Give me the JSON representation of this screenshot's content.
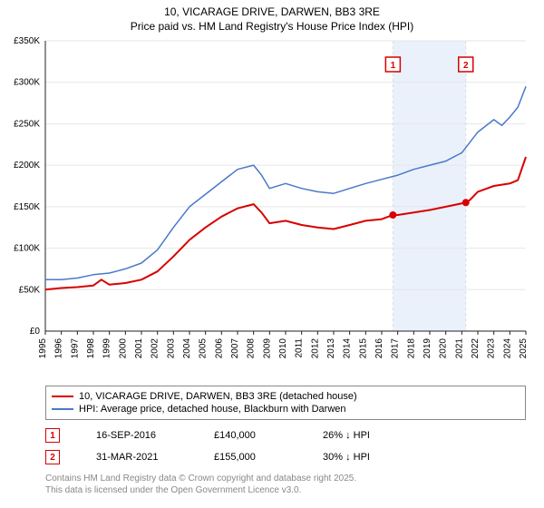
{
  "title": {
    "line1": "10, VICARAGE DRIVE, DARWEN, BB3 3RE",
    "line2": "Price paid vs. HM Land Registry's House Price Index (HPI)"
  },
  "chart": {
    "type": "line",
    "background_color": "#ffffff",
    "grid_color": "#e6e6e6",
    "axis_color": "#222222",
    "x": {
      "min": 1995,
      "max": 2025,
      "ticks": [
        1995,
        1996,
        1997,
        1998,
        1999,
        2000,
        2001,
        2002,
        2003,
        2004,
        2005,
        2006,
        2007,
        2008,
        2009,
        2010,
        2011,
        2012,
        2013,
        2014,
        2015,
        2016,
        2017,
        2018,
        2019,
        2020,
        2021,
        2022,
        2023,
        2024,
        2025
      ],
      "tick_fontsize": 10
    },
    "y": {
      "min": 0,
      "max": 350,
      "ticks": [
        0,
        50,
        100,
        150,
        200,
        250,
        300,
        350
      ],
      "tick_labels": [
        "£0",
        "£50K",
        "£100K",
        "£150K",
        "£200K",
        "£250K",
        "£300K",
        "£350K"
      ],
      "tick_fontsize": 10
    },
    "highlight_band": {
      "x_from": 2016.7,
      "x_to": 2021.25,
      "color": "#eaf1fb"
    },
    "highlight_dash": {
      "x_at": [
        2016.7,
        2021.25
      ],
      "color": "#dadde3"
    },
    "series": [
      {
        "id": "price_paid",
        "label": "10, VICARAGE DRIVE, DARWEN, BB3 3RE (detached house)",
        "color": "#d80000",
        "line_width": 2,
        "points": [
          [
            1995,
            50
          ],
          [
            1996,
            52
          ],
          [
            1997,
            53
          ],
          [
            1998,
            55
          ],
          [
            1998.5,
            62
          ],
          [
            1999,
            56
          ],
          [
            2000,
            58
          ],
          [
            2001,
            62
          ],
          [
            2002,
            72
          ],
          [
            2003,
            90
          ],
          [
            2004,
            110
          ],
          [
            2005,
            125
          ],
          [
            2006,
            138
          ],
          [
            2007,
            148
          ],
          [
            2008,
            153
          ],
          [
            2008.5,
            143
          ],
          [
            2009,
            130
          ],
          [
            2010,
            133
          ],
          [
            2011,
            128
          ],
          [
            2012,
            125
          ],
          [
            2013,
            123
          ],
          [
            2014,
            128
          ],
          [
            2015,
            133
          ],
          [
            2016,
            135
          ],
          [
            2016.7,
            140
          ],
          [
            2017,
            140
          ],
          [
            2018,
            143
          ],
          [
            2019,
            146
          ],
          [
            2020,
            150
          ],
          [
            2021.25,
            155
          ],
          [
            2021.5,
            158
          ],
          [
            2022,
            168
          ],
          [
            2023,
            175
          ],
          [
            2024,
            178
          ],
          [
            2024.5,
            182
          ],
          [
            2025,
            210
          ]
        ]
      },
      {
        "id": "hpi",
        "label": "HPI: Average price, detached house, Blackburn with Darwen",
        "color": "#4a79c9",
        "line_width": 1.5,
        "points": [
          [
            1995,
            62
          ],
          [
            1996,
            62
          ],
          [
            1997,
            64
          ],
          [
            1998,
            68
          ],
          [
            1999,
            70
          ],
          [
            2000,
            75
          ],
          [
            2001,
            82
          ],
          [
            2002,
            98
          ],
          [
            2003,
            125
          ],
          [
            2004,
            150
          ],
          [
            2005,
            165
          ],
          [
            2006,
            180
          ],
          [
            2007,
            195
          ],
          [
            2008,
            200
          ],
          [
            2008.5,
            188
          ],
          [
            2009,
            172
          ],
          [
            2010,
            178
          ],
          [
            2011,
            172
          ],
          [
            2012,
            168
          ],
          [
            2013,
            166
          ],
          [
            2014,
            172
          ],
          [
            2015,
            178
          ],
          [
            2016,
            183
          ],
          [
            2017,
            188
          ],
          [
            2018,
            195
          ],
          [
            2019,
            200
          ],
          [
            2020,
            205
          ],
          [
            2021,
            215
          ],
          [
            2022,
            240
          ],
          [
            2023,
            255
          ],
          [
            2023.5,
            248
          ],
          [
            2024,
            258
          ],
          [
            2024.5,
            270
          ],
          [
            2025,
            295
          ]
        ]
      }
    ],
    "markers": [
      {
        "n": "1",
        "x": 2016.7,
        "y": 140,
        "color": "#d80000"
      },
      {
        "n": "2",
        "x": 2021.25,
        "y": 155,
        "color": "#d80000"
      }
    ],
    "marker_flags": [
      {
        "n": "1",
        "x": 2016.7,
        "color": "#d80000"
      },
      {
        "n": "2",
        "x": 2021.25,
        "color": "#d80000"
      }
    ]
  },
  "legend": {
    "items": [
      {
        "color": "#d80000",
        "width": 2,
        "label": "10, VICARAGE DRIVE, DARWEN, BB3 3RE (detached house)"
      },
      {
        "color": "#4a79c9",
        "width": 1.5,
        "label": "HPI: Average price, detached house, Blackburn with Darwen"
      }
    ]
  },
  "sales": [
    {
      "n": "1",
      "color": "#d80000",
      "date": "16-SEP-2016",
      "price": "£140,000",
      "delta": "26% ↓ HPI"
    },
    {
      "n": "2",
      "color": "#d80000",
      "date": "31-MAR-2021",
      "price": "£155,000",
      "delta": "30% ↓ HPI"
    }
  ],
  "attribution": {
    "line1": "Contains HM Land Registry data © Crown copyright and database right 2025.",
    "line2": "This data is licensed under the Open Government Licence v3.0."
  }
}
